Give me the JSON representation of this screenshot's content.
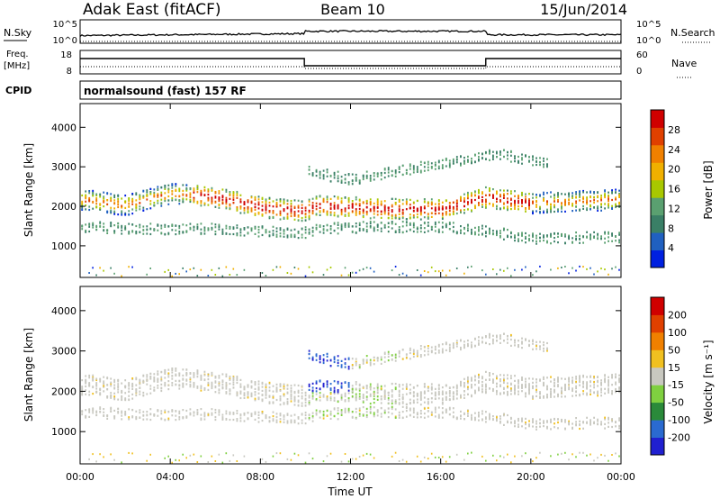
{
  "header": {
    "station": "Adak East (fitACF)",
    "beam": "Beam 10",
    "date": "15/Jun/2014"
  },
  "meta_panels": {
    "nsky_label": "N.Sky",
    "nsearch_label": "N.Search",
    "nsky_ticks": [
      "10^5",
      "10^0"
    ],
    "nsearch_ticks": [
      "10^5",
      "10^0"
    ],
    "freq_label": "Freq.",
    "freq_unit": "[MHz]",
    "freq_ticks": [
      "18",
      "8"
    ],
    "nave_label": "Nave",
    "nave_ticks": [
      "60",
      "0"
    ],
    "cpid_label": "CPID",
    "cpid_text": "normalsound (fast) 157 RF"
  },
  "colors": {
    "power_scale": [
      "#0020e0",
      "#2060c0",
      "#3a7f66",
      "#5aa070",
      "#a8c800",
      "#f0b000",
      "#f08000",
      "#e04000",
      "#d00000"
    ],
    "velocity_scale": [
      "#2020d0",
      "#2a6ad0",
      "#2a8a3a",
      "#7fd040",
      "#c8c8c0",
      "#f0c020",
      "#f08000",
      "#e04000",
      "#d00000"
    ]
  },
  "chart_data": [
    {
      "type": "heatmap",
      "panel": "power",
      "ylabel": "Slant Range [km]",
      "yticks": [
        "1000",
        "2000",
        "3000",
        "4000"
      ],
      "ylim": [
        200,
        4600
      ],
      "xlim": [
        0,
        24
      ],
      "colorbar_label": "Power [dB]",
      "colorbar_ticks": [
        "4",
        "8",
        "12",
        "16",
        "20",
        "24",
        "28"
      ],
      "series": [
        {
          "name": "main",
          "x": [
            0,
            2,
            4,
            6,
            8,
            9.9,
            10.5,
            12,
            14,
            16,
            18,
            20,
            22,
            24
          ],
          "y": [
            2200,
            2050,
            2350,
            2250,
            2000,
            1900,
            2050,
            2000,
            1950,
            1950,
            2250,
            2100,
            2150,
            2200
          ]
        },
        {
          "name": "lower",
          "x": [
            0,
            3,
            6,
            9.9,
            10.5,
            13,
            16,
            18,
            20,
            24
          ],
          "y": [
            1500,
            1450,
            1450,
            1350,
            1450,
            1500,
            1500,
            1400,
            1200,
            1250
          ]
        },
        {
          "name": "upper",
          "x": [
            10,
            11,
            12,
            18.5,
            20,
            20.8
          ],
          "y": [
            3000,
            2800,
            2700,
            3350,
            3200,
            3100
          ]
        }
      ]
    },
    {
      "type": "heatmap",
      "panel": "velocity",
      "ylabel": "Slant Range [km]",
      "yticks": [
        "1000",
        "2000",
        "3000",
        "4000"
      ],
      "ylim": [
        200,
        4600
      ],
      "xlim": [
        0,
        24
      ],
      "xticks": [
        "00:00",
        "04:00",
        "08:00",
        "12:00",
        "16:00",
        "20:00",
        "00:00"
      ],
      "xlabel": "Time UT",
      "colorbar_label": "Velocity [m s⁻¹]",
      "colorbar_ticks": [
        "200",
        "100",
        "50",
        "15",
        "-15",
        "-50",
        "-100",
        "-200"
      ]
    }
  ]
}
